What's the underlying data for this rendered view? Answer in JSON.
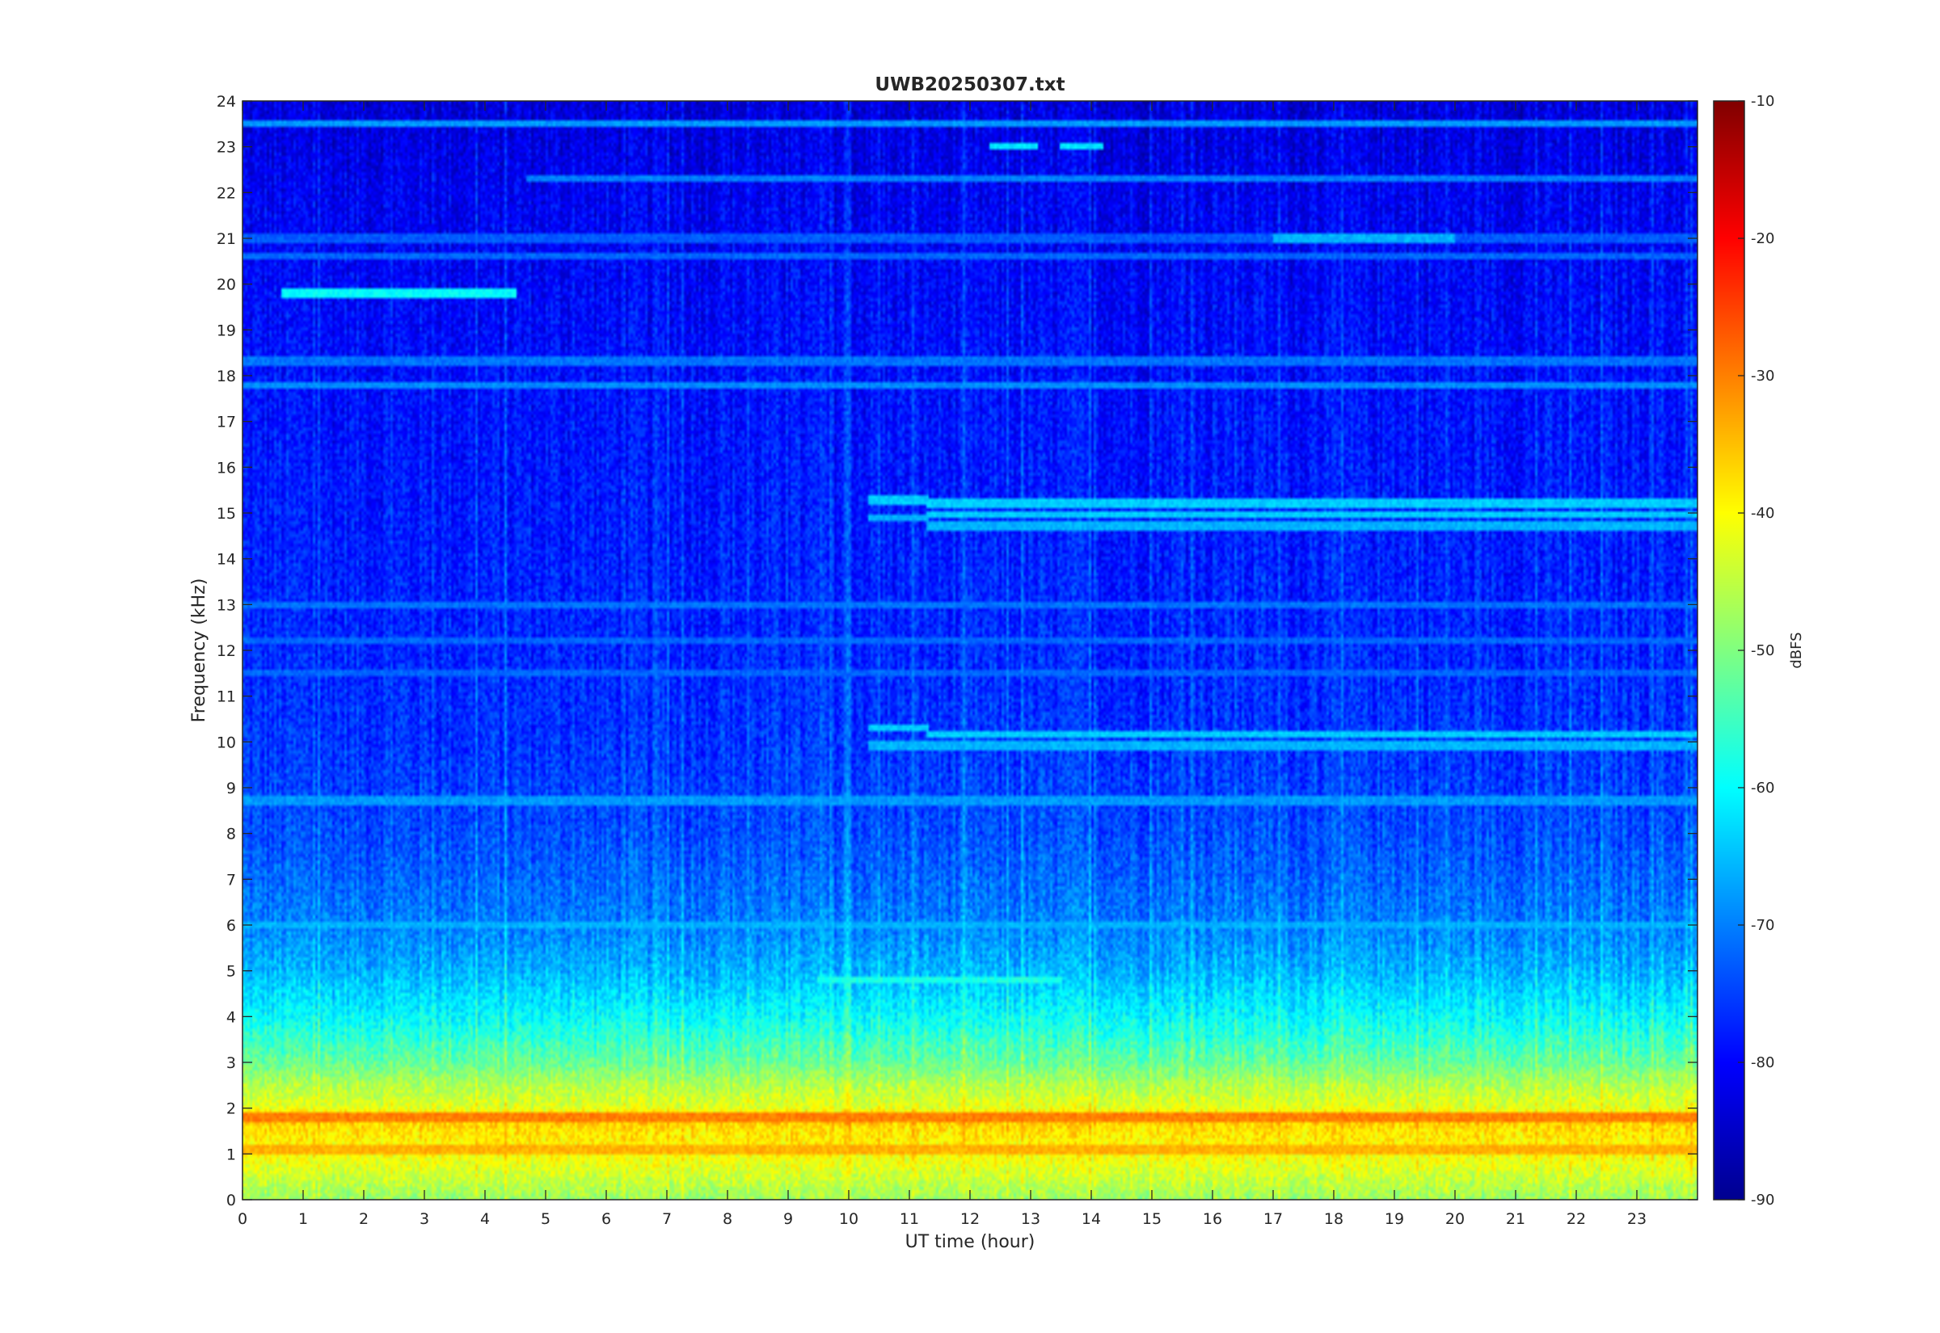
{
  "chart_data": {
    "type": "heatmap",
    "title": "UWB20250307.txt",
    "xlabel": "UT time (hour)",
    "ylabel": "Frequency (kHz)",
    "colorbar_label": "dBFS",
    "xlim": [
      0,
      24
    ],
    "ylim": [
      0,
      24
    ],
    "clim": [
      -90,
      -10
    ],
    "colormap": "jet",
    "x_ticks": [
      "0",
      "1",
      "2",
      "3",
      "4",
      "5",
      "6",
      "7",
      "8",
      "9",
      "10",
      "11",
      "12",
      "13",
      "14",
      "15",
      "16",
      "17",
      "18",
      "19",
      "20",
      "21",
      "22",
      "23"
    ],
    "y_ticks": [
      "0",
      "1",
      "2",
      "3",
      "4",
      "5",
      "6",
      "7",
      "8",
      "9",
      "10",
      "11",
      "12",
      "13",
      "14",
      "15",
      "16",
      "17",
      "18",
      "19",
      "20",
      "21",
      "22",
      "23",
      "24"
    ],
    "colorbar_ticks": [
      "-90",
      "-80",
      "-70",
      "-60",
      "-50",
      "-40",
      "-30",
      "-20",
      "-10"
    ],
    "background_profile": [
      {
        "freq_khz": 0.0,
        "dbfs": -48
      },
      {
        "freq_khz": 0.5,
        "dbfs": -44
      },
      {
        "freq_khz": 1.0,
        "dbfs": -40
      },
      {
        "freq_khz": 1.5,
        "dbfs": -38
      },
      {
        "freq_khz": 1.8,
        "dbfs": -35
      },
      {
        "freq_khz": 2.0,
        "dbfs": -42
      },
      {
        "freq_khz": 2.5,
        "dbfs": -46
      },
      {
        "freq_khz": 3.0,
        "dbfs": -52
      },
      {
        "freq_khz": 3.5,
        "dbfs": -56
      },
      {
        "freq_khz": 4.0,
        "dbfs": -60
      },
      {
        "freq_khz": 4.5,
        "dbfs": -63
      },
      {
        "freq_khz": 5.0,
        "dbfs": -66
      },
      {
        "freq_khz": 6.0,
        "dbfs": -70
      },
      {
        "freq_khz": 7.0,
        "dbfs": -72
      },
      {
        "freq_khz": 8.0,
        "dbfs": -74
      },
      {
        "freq_khz": 9.0,
        "dbfs": -75
      },
      {
        "freq_khz": 10.0,
        "dbfs": -76
      },
      {
        "freq_khz": 12.0,
        "dbfs": -77
      },
      {
        "freq_khz": 15.0,
        "dbfs": -78
      },
      {
        "freq_khz": 18.0,
        "dbfs": -79
      },
      {
        "freq_khz": 20.0,
        "dbfs": -80
      },
      {
        "freq_khz": 22.0,
        "dbfs": -81
      },
      {
        "freq_khz": 24.0,
        "dbfs": -83
      }
    ],
    "features": [
      {
        "t_start": 0.65,
        "t_end": 4.5,
        "freq_khz": 19.8,
        "dbfs": -60
      },
      {
        "t_start": 11.3,
        "t_end": 24.0,
        "freq_khz": 15.2,
        "dbfs": -64
      },
      {
        "t_start": 11.3,
        "t_end": 24.0,
        "freq_khz": 14.95,
        "dbfs": -64
      },
      {
        "t_start": 11.3,
        "t_end": 24.0,
        "freq_khz": 14.7,
        "dbfs": -66
      },
      {
        "t_start": 10.3,
        "t_end": 11.3,
        "freq_khz": 15.3,
        "dbfs": -64
      },
      {
        "t_start": 10.3,
        "t_end": 11.3,
        "freq_khz": 14.9,
        "dbfs": -66
      },
      {
        "t_start": 11.3,
        "t_end": 24.0,
        "freq_khz": 10.15,
        "dbfs": -64
      },
      {
        "t_start": 11.3,
        "t_end": 24.0,
        "freq_khz": 9.9,
        "dbfs": -66
      },
      {
        "t_start": 10.3,
        "t_end": 11.3,
        "freq_khz": 10.3,
        "dbfs": -64
      },
      {
        "t_start": 10.3,
        "t_end": 11.3,
        "freq_khz": 9.9,
        "dbfs": -66
      },
      {
        "t_start": 4.7,
        "t_end": 24.0,
        "freq_khz": 22.3,
        "dbfs": -70
      },
      {
        "t_start": 0.0,
        "t_end": 24.0,
        "freq_khz": 23.5,
        "dbfs": -68
      },
      {
        "t_start": 0.0,
        "t_end": 24.0,
        "freq_khz": 18.3,
        "dbfs": -71
      },
      {
        "t_start": 0.0,
        "t_end": 24.0,
        "freq_khz": 17.8,
        "dbfs": -69
      },
      {
        "t_start": 0.0,
        "t_end": 24.0,
        "freq_khz": 20.6,
        "dbfs": -72
      },
      {
        "t_start": 0.0,
        "t_end": 24.0,
        "freq_khz": 21.0,
        "dbfs": -73
      },
      {
        "t_start": 17.0,
        "t_end": 20.0,
        "freq_khz": 21.0,
        "dbfs": -66
      },
      {
        "t_start": 0.0,
        "t_end": 24.0,
        "freq_khz": 8.7,
        "dbfs": -68
      },
      {
        "t_start": 0.0,
        "t_end": 24.0,
        "freq_khz": 13.0,
        "dbfs": -71
      },
      {
        "t_start": 0.0,
        "t_end": 24.0,
        "freq_khz": 12.2,
        "dbfs": -72
      },
      {
        "t_start": 0.0,
        "t_end": 24.0,
        "freq_khz": 11.5,
        "dbfs": -72
      },
      {
        "t_start": 0.0,
        "t_end": 24.0,
        "freq_khz": 6.0,
        "dbfs": -66
      },
      {
        "t_start": 9.5,
        "t_end": 13.5,
        "freq_khz": 4.8,
        "dbfs": -58
      },
      {
        "t_start": 12.3,
        "t_end": 13.1,
        "freq_khz": 23.0,
        "dbfs": -62
      },
      {
        "t_start": 13.5,
        "t_end": 14.2,
        "freq_khz": 23.0,
        "dbfs": -62
      },
      {
        "t_start": 0.0,
        "t_end": 24.0,
        "freq_khz": 1.8,
        "dbfs": -30
      },
      {
        "t_start": 0.0,
        "t_end": 24.0,
        "freq_khz": 1.1,
        "dbfs": -34
      }
    ]
  }
}
